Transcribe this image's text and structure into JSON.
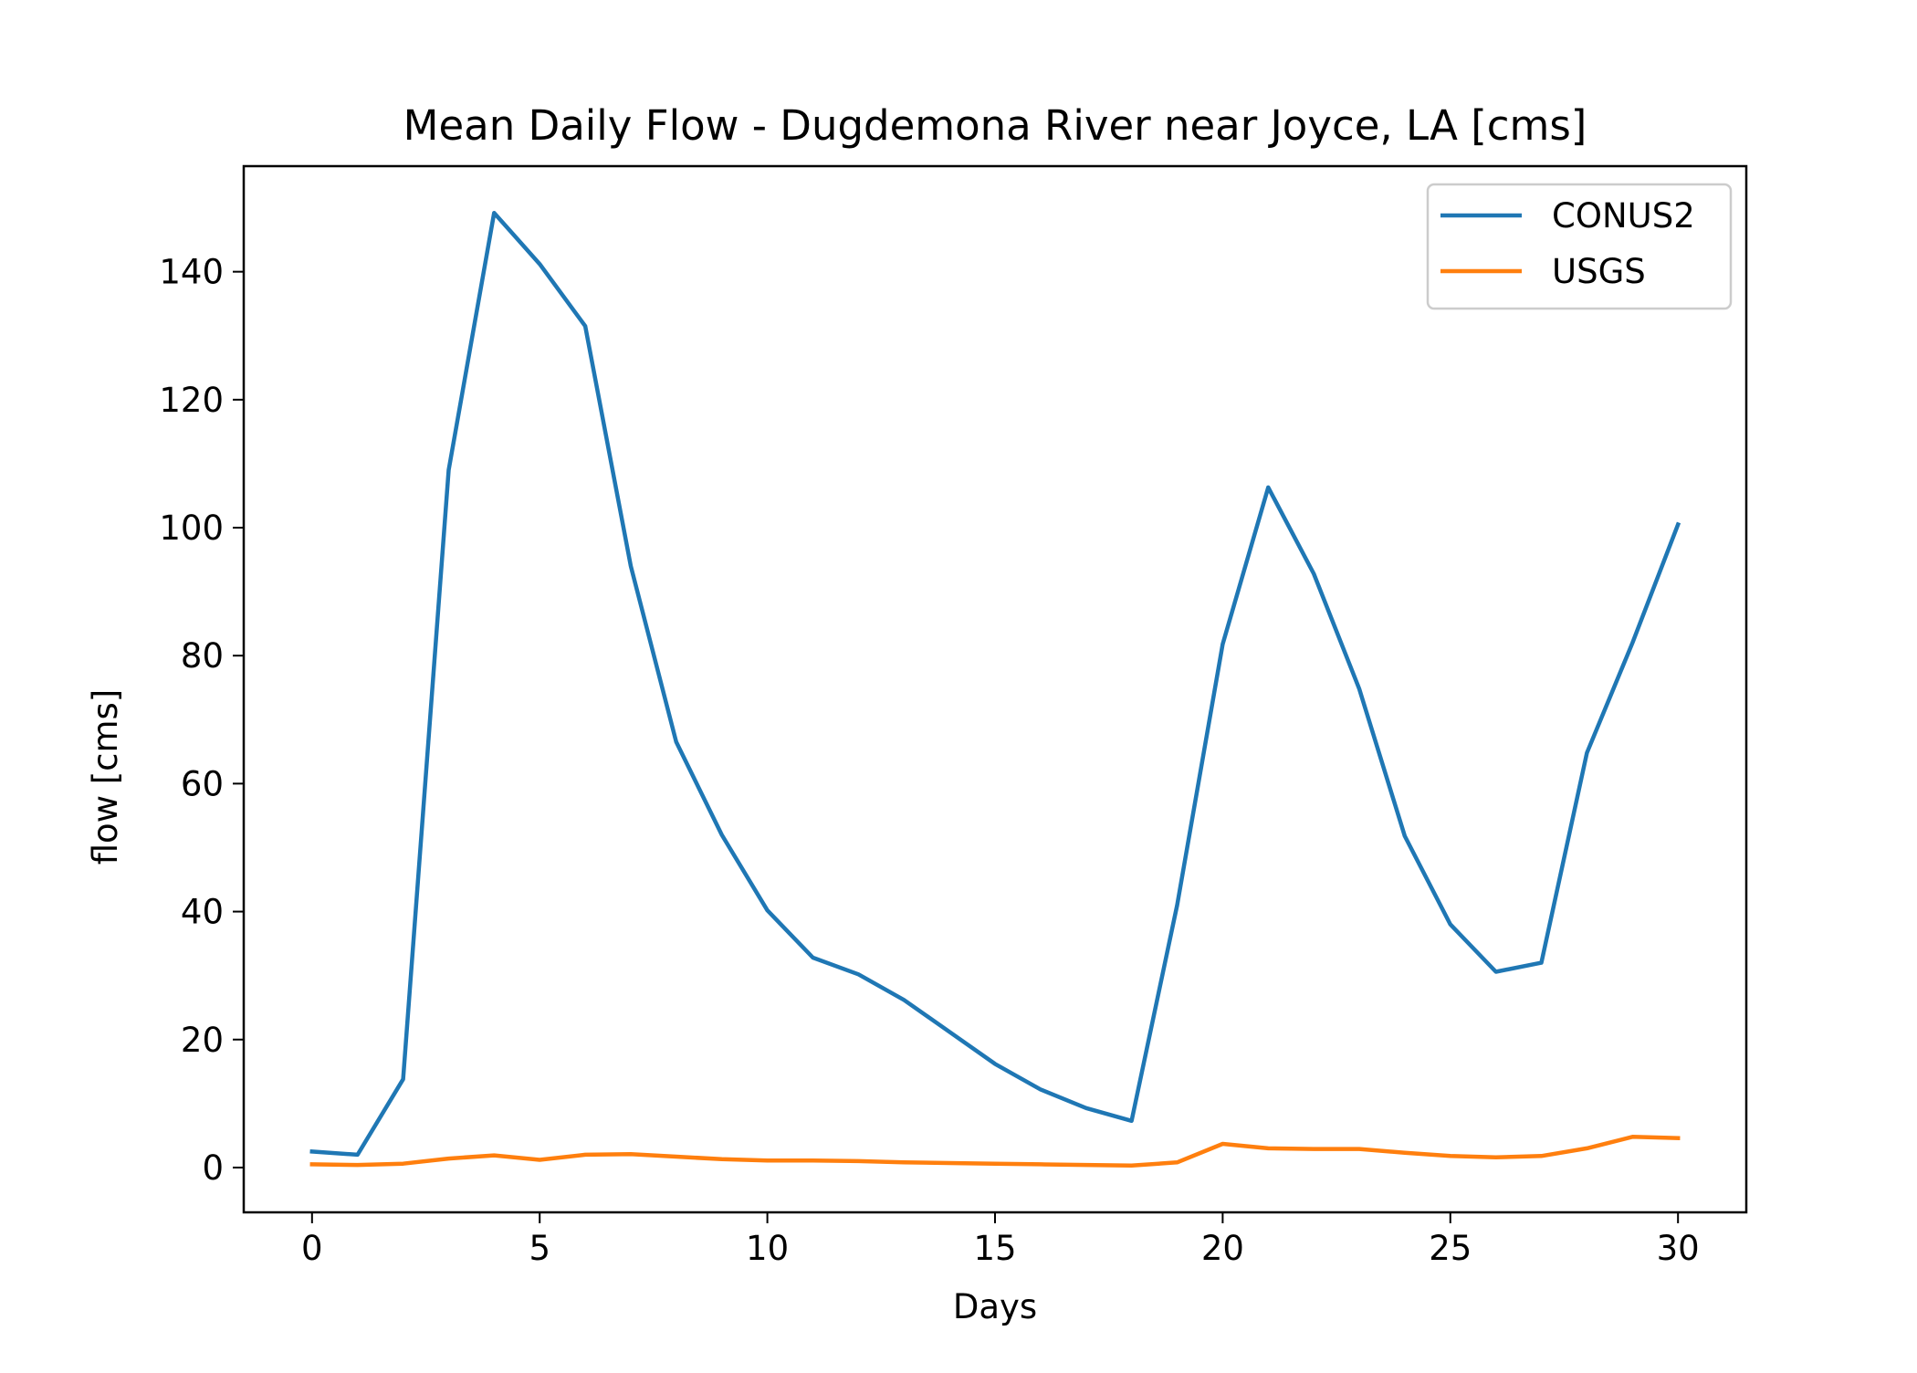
{
  "chart_data": {
    "type": "line",
    "title": "Mean Daily Flow - Dugdemona River near Joyce, LA [cms]",
    "xlabel": "Days",
    "ylabel": "flow [cms]",
    "xlim": [
      -1.5,
      31.5
    ],
    "ylim": [
      -7.0,
      156.5
    ],
    "xticks": [
      0,
      5,
      10,
      15,
      20,
      25,
      30
    ],
    "yticks": [
      0,
      20,
      40,
      60,
      80,
      100,
      120,
      140
    ],
    "grid": false,
    "legend_position": "top-right",
    "x": [
      0,
      1,
      2,
      3,
      4,
      5,
      6,
      7,
      8,
      9,
      10,
      11,
      12,
      13,
      14,
      15,
      16,
      17,
      18,
      19,
      20,
      21,
      22,
      23,
      24,
      25,
      26,
      27,
      28,
      29,
      30
    ],
    "series": [
      {
        "name": "CONUS2",
        "color": "#1f77b4",
        "values": [
          2.5,
          2.0,
          13.8,
          109.0,
          149.2,
          141.2,
          131.5,
          94.0,
          66.5,
          52.0,
          40.2,
          32.8,
          30.2,
          26.2,
          21.2,
          16.2,
          12.2,
          9.3,
          7.3,
          41.0,
          81.8,
          106.3,
          92.8,
          74.8,
          51.8,
          38.0,
          30.6,
          32.0,
          64.8,
          82.0,
          100.5
        ]
      },
      {
        "name": "USGS",
        "color": "#ff7f0e",
        "values": [
          0.5,
          0.4,
          0.6,
          1.4,
          1.9,
          1.2,
          2.0,
          2.1,
          1.7,
          1.3,
          1.1,
          1.1,
          1.0,
          0.8,
          0.7,
          0.6,
          0.5,
          0.4,
          0.3,
          0.8,
          3.7,
          3.0,
          2.9,
          2.9,
          2.3,
          1.8,
          1.6,
          1.8,
          3.0,
          4.8,
          4.6
        ]
      }
    ]
  }
}
